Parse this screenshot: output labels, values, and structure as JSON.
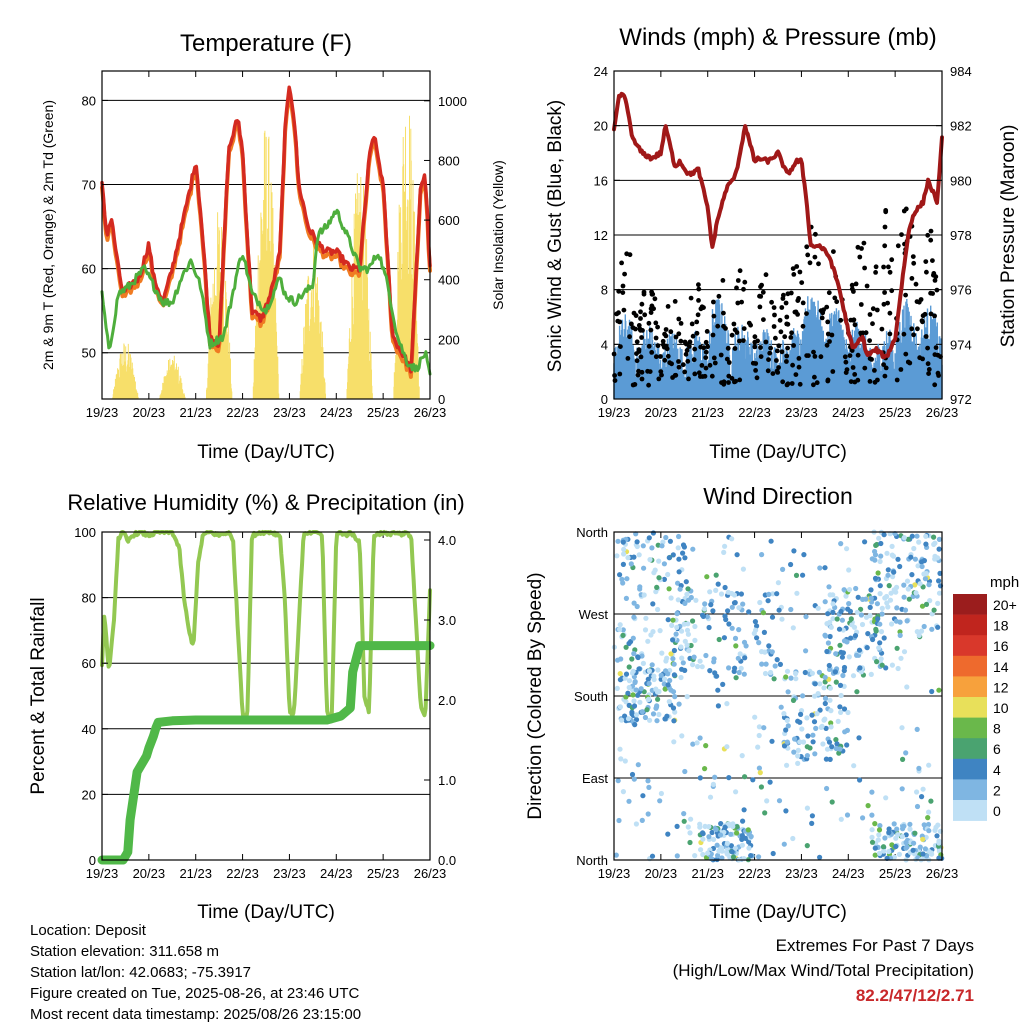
{
  "info": {
    "location": "Location: Deposit",
    "elevation": "Station elevation: 311.658 m",
    "latlon": "Station lat/lon: 42.0683; -75.3917",
    "created": "Figure created on Tue, 2025-08-26, at 23:46 UTC",
    "recent": "Most recent data timestamp: 2025/08/26 23:15:00"
  },
  "extremes": {
    "title": "Extremes For Past 7 Days",
    "subtitle": "(High/Low/Max Wind/Total Precipitation)",
    "values": "82.2/47/12/2.71"
  },
  "colors": {
    "temp2m": "#d42a20",
    "temp9m": "#f07b22",
    "dewpoint": "#4eae3c",
    "insolation": "#f7df6a",
    "wind": "#5b9bd5",
    "gust": "#000000",
    "pressure": "#a01818",
    "rh": "#93c852",
    "precip": "#50b848",
    "extreme_values": "#c8282a"
  },
  "chart_data": [
    {
      "type": "line",
      "title": "Temperature (F)",
      "xlabel": "Time (Day/UTC)",
      "ylabel": "2m & 9m T (Red, Orange) & 2m Td (Green)",
      "y2label": "Solar Insolation (Yellow)",
      "x_ticks": [
        "19/23",
        "20/23",
        "21/23",
        "22/23",
        "23/23",
        "24/23",
        "25/23",
        "26/23"
      ],
      "xlim": [
        0,
        7
      ],
      "ylim": [
        44.5,
        83.5
      ],
      "y_ticks": [
        50,
        60,
        70,
        80
      ],
      "y2lim": [
        0,
        1100
      ],
      "y2_ticks": [
        0,
        200,
        400,
        600,
        800,
        1000
      ],
      "grid": "horizontal",
      "series": [
        {
          "key": "temp",
          "x": [
            0,
            0.1,
            0.2,
            0.35,
            0.45,
            0.6,
            0.8,
            1.0,
            1.1,
            1.3,
            1.5,
            1.7,
            1.9,
            2.0,
            2.1,
            2.2,
            2.3,
            2.5,
            2.7,
            2.9,
            3.0,
            3.1,
            3.2,
            3.4,
            3.6,
            3.8,
            3.9,
            4.0,
            4.1,
            4.2,
            4.4,
            4.6,
            4.8,
            5.0,
            5.3,
            5.5,
            5.7,
            5.8,
            6.0,
            6.2,
            6.4,
            6.6,
            6.8,
            6.9,
            7.0
          ],
          "y": [
            70,
            64,
            66,
            60,
            57,
            58,
            59,
            63,
            59,
            56,
            60,
            65,
            70,
            73,
            67,
            60,
            52,
            51,
            74,
            78,
            74,
            64,
            55,
            54,
            57,
            62,
            76,
            82,
            78,
            70,
            65,
            63,
            62,
            62,
            60,
            60,
            73,
            76,
            70,
            52,
            50,
            48,
            70,
            71,
            60
          ]
        },
        {
          "key": "dewpoint",
          "x": [
            0,
            0.15,
            0.35,
            0.6,
            0.9,
            1.1,
            1.3,
            1.5,
            1.7,
            1.9,
            2.1,
            2.3,
            2.6,
            2.9,
            3.0,
            3.2,
            3.5,
            3.8,
            3.9,
            4.1,
            4.3,
            4.5,
            4.6,
            4.8,
            5.0,
            5.3,
            5.5,
            5.7,
            5.9,
            6.1,
            6.3,
            6.5,
            6.7,
            6.9,
            7.0
          ],
          "y": [
            57,
            50,
            57,
            58,
            60,
            58,
            56,
            56,
            59,
            61,
            58,
            51,
            52,
            60,
            62,
            57,
            55,
            59,
            57,
            56,
            57,
            58,
            64,
            65,
            67,
            63,
            60,
            60,
            62,
            58,
            52,
            49,
            48,
            50,
            47
          ]
        }
      ],
      "insolation": {
        "days": [
          0.5,
          1.5,
          2.5,
          3.5,
          4.5,
          5.5,
          6.5
        ],
        "peaks": [
          200,
          150,
          650,
          950,
          550,
          800,
          1080
        ]
      }
    },
    {
      "type": "scatter",
      "title": "Winds (mph) & Pressure (mb)",
      "xlabel": "Time (Day/UTC)",
      "ylabel": "Sonic Wind & Gust (Blue, Black)",
      "y2label": "Station Pressure (Maroon)",
      "x_ticks": [
        "19/23",
        "20/23",
        "21/23",
        "22/23",
        "23/23",
        "24/23",
        "25/23",
        "26/23"
      ],
      "xlim": [
        0,
        7
      ],
      "ylim": [
        0,
        24
      ],
      "y_ticks": [
        0,
        4,
        8,
        12,
        16,
        20,
        24
      ],
      "y2lim": [
        972,
        984
      ],
      "y2_ticks": [
        972,
        974,
        976,
        978,
        980,
        982,
        984
      ],
      "grid": "horizontal",
      "wind_peaks": {
        "x": [
          0.25,
          1.1,
          1.9,
          2.1,
          2.7,
          3.8,
          4.1,
          5.3,
          5.7,
          6.1,
          6.8
        ],
        "y": [
          7,
          5,
          5,
          10,
          6,
          5,
          11,
          6,
          4,
          9,
          8
        ]
      },
      "gust_peaks": {
        "x": [
          0.25,
          1.1,
          1.9,
          2.1,
          3.8,
          4.0,
          4.4,
          4.9,
          5.7,
          6.1,
          6.8
        ],
        "y": [
          14,
          8,
          10,
          12,
          10,
          22,
          14,
          12,
          16,
          20,
          14
        ]
      },
      "pressure": {
        "x": [
          0,
          0.1,
          0.2,
          0.3,
          0.4,
          0.6,
          0.8,
          1.0,
          1.1,
          1.3,
          1.4,
          1.6,
          1.8,
          2.0,
          2.1,
          2.2,
          2.4,
          2.6,
          2.8,
          3.0,
          3.1,
          3.3,
          3.5,
          3.7,
          3.9,
          4.0,
          4.1,
          4.2,
          4.4,
          4.6,
          4.8,
          5.0,
          5.1,
          5.3,
          5.4,
          5.6,
          5.8,
          6.0,
          6.2,
          6.3,
          6.4,
          6.5,
          6.6,
          6.7,
          6.8,
          6.9,
          7.0
        ],
        "y": [
          981.8,
          983,
          983.2,
          982.5,
          981.5,
          981,
          980.8,
          981,
          982,
          980.5,
          980.7,
          980.2,
          980.4,
          979,
          977.5,
          978.5,
          979.7,
          980.2,
          982,
          980.7,
          980.8,
          980.7,
          981,
          980.2,
          980.7,
          980.7,
          979.4,
          977.6,
          977.6,
          977.2,
          976.1,
          974.5,
          973.8,
          974.3,
          973.6,
          973.8,
          973.5,
          974.2,
          977,
          978.2,
          978.8,
          979,
          979.2,
          980,
          979.6,
          979.2,
          981.5
        ]
      }
    },
    {
      "type": "line",
      "title": "Relative Humidity (%) & Precipitation (in)",
      "xlabel": "Time (Day/UTC)",
      "ylabel": "Percent & Total Rainfall",
      "x_ticks": [
        "19/23",
        "20/23",
        "21/23",
        "22/23",
        "23/23",
        "24/23",
        "25/23",
        "26/23"
      ],
      "xlim": [
        0,
        7
      ],
      "ylim": [
        0,
        100
      ],
      "y_ticks": [
        0,
        20,
        40,
        60,
        80,
        100
      ],
      "y2lim": [
        0,
        4.1
      ],
      "y2_ticks": [
        "0.0",
        "1.0",
        "2.0",
        "3.0",
        "4.0"
      ],
      "grid": "horizontal",
      "series": [
        {
          "key": "rh",
          "x": [
            0,
            0.05,
            0.15,
            0.25,
            0.35,
            0.45,
            0.55,
            0.65,
            0.8,
            1.0,
            1.2,
            1.5,
            1.65,
            1.75,
            1.85,
            1.95,
            2.05,
            2.15,
            2.3,
            2.5,
            2.7,
            2.8,
            2.9,
            3.0,
            3.1,
            3.2,
            3.4,
            3.6,
            3.8,
            3.9,
            4.0,
            4.05,
            4.1,
            4.3,
            4.5,
            4.6,
            4.7,
            4.8,
            4.9,
            5.0,
            5.1,
            5.2,
            5.3,
            5.5,
            5.6,
            5.7,
            5.8,
            6.0,
            6.1,
            6.2,
            6.4,
            6.5,
            6.6,
            6.8,
            6.9,
            7.0
          ],
          "y": [
            60,
            75,
            57,
            72,
            98,
            100,
            97,
            99,
            100,
            99,
            100,
            100,
            95,
            80,
            70,
            65,
            90,
            99,
            100,
            99,
            100,
            97,
            70,
            45,
            43,
            99,
            100,
            100,
            99,
            80,
            46,
            44,
            45,
            99,
            100,
            100,
            99,
            45,
            42,
            99,
            100,
            99,
            100,
            97,
            50,
            45,
            99,
            100,
            99,
            100,
            99,
            100,
            98,
            47,
            44,
            82
          ]
        },
        {
          "key": "precip",
          "x": [
            0,
            0.45,
            0.55,
            0.6,
            0.7,
            0.75,
            0.85,
            0.95,
            1.0,
            1.1,
            1.15,
            1.2,
            1.5,
            2.0,
            2.5,
            3.0,
            3.5,
            4.0,
            4.5,
            4.8,
            5.1,
            5.3,
            5.35,
            5.5,
            6.0,
            6.5,
            7.0
          ],
          "y": [
            0,
            0,
            0.1,
            0.5,
            0.9,
            1.1,
            1.2,
            1.3,
            1.4,
            1.55,
            1.65,
            1.72,
            1.74,
            1.75,
            1.75,
            1.75,
            1.75,
            1.75,
            1.75,
            1.75,
            1.8,
            1.9,
            2.35,
            2.68,
            2.68,
            2.68,
            2.68
          ]
        }
      ]
    },
    {
      "type": "scatter",
      "title": "Wind Direction",
      "xlabel": "Time (Day/UTC)",
      "ylabel": "Direction (Colored By Speed)",
      "x_ticks": [
        "19/23",
        "20/23",
        "21/23",
        "22/23",
        "23/23",
        "24/23",
        "25/23",
        "26/23"
      ],
      "xlim": [
        0,
        7
      ],
      "y_ticks": [
        "North",
        "East",
        "South",
        "West",
        "North"
      ],
      "ylim": [
        0,
        360
      ],
      "grid": "horizontal",
      "legend_title": "mph",
      "legend_labels": [
        "20+",
        "18",
        "16",
        "14",
        "12",
        "10",
        "8",
        "6",
        "4",
        "2",
        "0"
      ],
      "legend_colors": [
        "#9b1d1d",
        "#c0251e",
        "#d9382b",
        "#ee6a2d",
        "#f7a13c",
        "#e8e05a",
        "#6ab84b",
        "#4aa370",
        "#3f84c2",
        "#7fb6e2",
        "#bfe0f5"
      ],
      "clusters": [
        {
          "x": [
            0,
            1.6
          ],
          "dir": [
            200,
            360
          ]
        },
        {
          "x": [
            0.1,
            1.3
          ],
          "dir": [
            150,
            210
          ]
        },
        {
          "x": [
            1.2,
            3.5
          ],
          "dir": [
            200,
            300
          ]
        },
        {
          "x": [
            3.6,
            5.0
          ],
          "dir": [
            110,
            210
          ]
        },
        {
          "x": [
            4.5,
            5.8
          ],
          "dir": [
            200,
            300
          ]
        },
        {
          "x": [
            5.5,
            7.0
          ],
          "dir": [
            250,
            360
          ]
        },
        {
          "x": [
            1.8,
            3.0
          ],
          "dir": [
            0,
            40
          ]
        },
        {
          "x": [
            5.5,
            7.0
          ],
          "dir": [
            0,
            40
          ]
        }
      ]
    }
  ]
}
